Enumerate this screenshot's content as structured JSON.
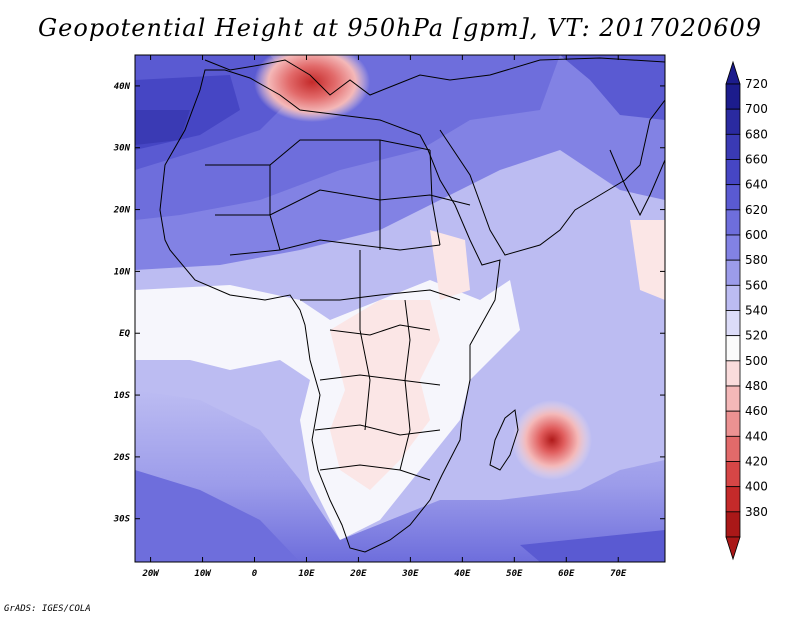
{
  "title": "Geopotential Height at 950hPa [gpm], VT: 2017020609",
  "footer": "GrADS: IGES/COLA",
  "map": {
    "variable": "Geopotential Height",
    "level": "950hPa",
    "units": "gpm",
    "valid_time": "2017020609",
    "lon_range": [
      -23,
      79
    ],
    "lat_range": [
      -37,
      45
    ],
    "lon_ticks": [
      {
        "value": -20,
        "label": "20W"
      },
      {
        "value": -10,
        "label": "10W"
      },
      {
        "value": 0,
        "label": "0"
      },
      {
        "value": 10,
        "label": "10E"
      },
      {
        "value": 20,
        "label": "20E"
      },
      {
        "value": 30,
        "label": "30E"
      },
      {
        "value": 40,
        "label": "40E"
      },
      {
        "value": 50,
        "label": "50E"
      },
      {
        "value": 60,
        "label": "60E"
      },
      {
        "value": 70,
        "label": "70E"
      }
    ],
    "lat_ticks": [
      {
        "value": 40,
        "label": "40N"
      },
      {
        "value": 30,
        "label": "30N"
      },
      {
        "value": 20,
        "label": "20N"
      },
      {
        "value": 10,
        "label": "10N"
      },
      {
        "value": 0,
        "label": "EQ"
      },
      {
        "value": -10,
        "label": "10S"
      },
      {
        "value": -20,
        "label": "20S"
      },
      {
        "value": -30,
        "label": "30S"
      }
    ],
    "features": [
      {
        "name": "trough-mediterranean",
        "lon": 12,
        "lat": 41,
        "min_value": 460
      },
      {
        "name": "low-near-mauritius",
        "lon": 58.5,
        "lat": -17.5,
        "min_value": 440
      },
      {
        "name": "high-north-atlantic",
        "lon": -20,
        "lat": 33,
        "max_value": 690
      }
    ]
  },
  "colorbar": {
    "labels": [
      "720",
      "700",
      "680",
      "660",
      "640",
      "620",
      "600",
      "580",
      "560",
      "540",
      "520",
      "500",
      "480",
      "460",
      "440",
      "420",
      "400",
      "380"
    ],
    "colors": [
      "#1c1c8c",
      "#2a2aa0",
      "#3a3ab4",
      "#4646c4",
      "#5a5ad2",
      "#6e6edc",
      "#8282e4",
      "#9c9cea",
      "#bcbcf2",
      "#dcdcf8",
      "#fbfbfb",
      "#fadcdc",
      "#f4b8b8",
      "#ec9292",
      "#e26a6a",
      "#d64646",
      "#c42a2a",
      "#aa1818"
    ]
  }
}
